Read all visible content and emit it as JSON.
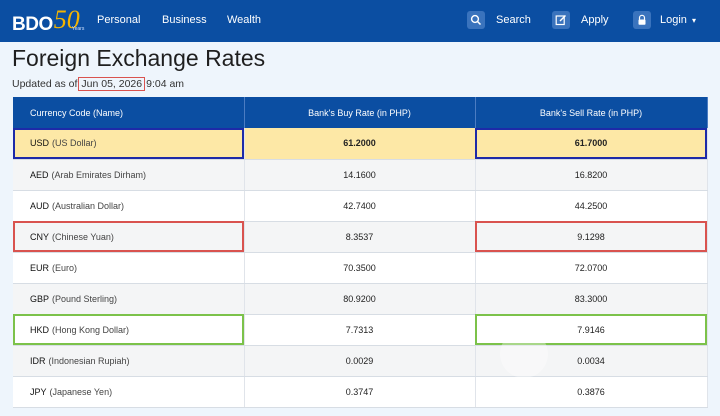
{
  "nav": {
    "logo_text": "BDO",
    "logo_number": "50",
    "logo_years": "Years",
    "links": [
      "Personal",
      "Business",
      "Wealth"
    ],
    "search_label": "Search",
    "apply_label": "Apply",
    "login_label": "Login",
    "login_caret": "▾"
  },
  "page": {
    "title": "Foreign Exchange Rates",
    "updated_prefix": "Updated as of",
    "updated_date": "Jun 05, 2026",
    "updated_time": "9:04 am"
  },
  "table": {
    "headers": [
      "Currency Code (Name)",
      "Bank's Buy Rate (in PHP)",
      "Bank's Sell Rate (in PHP)"
    ],
    "rows": [
      {
        "code": "USD",
        "name": "(US Dollar)",
        "buy": "61.2000",
        "sell": "61.7000"
      },
      {
        "code": "AED",
        "name": "(Arab Emirates Dirham)",
        "buy": "14.1600",
        "sell": "16.8200"
      },
      {
        "code": "AUD",
        "name": "(Australian Dollar)",
        "buy": "42.7400",
        "sell": "44.2500"
      },
      {
        "code": "CNY",
        "name": "(Chinese Yuan)",
        "buy": "8.3537",
        "sell": "9.1298"
      },
      {
        "code": "EUR",
        "name": "(Euro)",
        "buy": "70.3500",
        "sell": "72.0700"
      },
      {
        "code": "GBP",
        "name": "(Pound Sterling)",
        "buy": "80.9200",
        "sell": "83.3000"
      },
      {
        "code": "HKD",
        "name": "(Hong Kong Dollar)",
        "buy": "7.7313",
        "sell": "7.9146"
      },
      {
        "code": "IDR",
        "name": "(Indonesian Rupiah)",
        "buy": "0.0029",
        "sell": "0.0034"
      },
      {
        "code": "JPY",
        "name": "(Japanese Yen)",
        "buy": "0.3747",
        "sell": "0.3876"
      }
    ]
  },
  "colors": {
    "nav_bg": "#0b4ea2",
    "highlight_row": "#fde8a6",
    "box_blue": "#1d2aa8",
    "box_red": "#d9534f",
    "box_green": "#7cc24a"
  },
  "icons": {
    "search": "search-icon",
    "apply": "edit-icon",
    "login": "lock-icon"
  }
}
